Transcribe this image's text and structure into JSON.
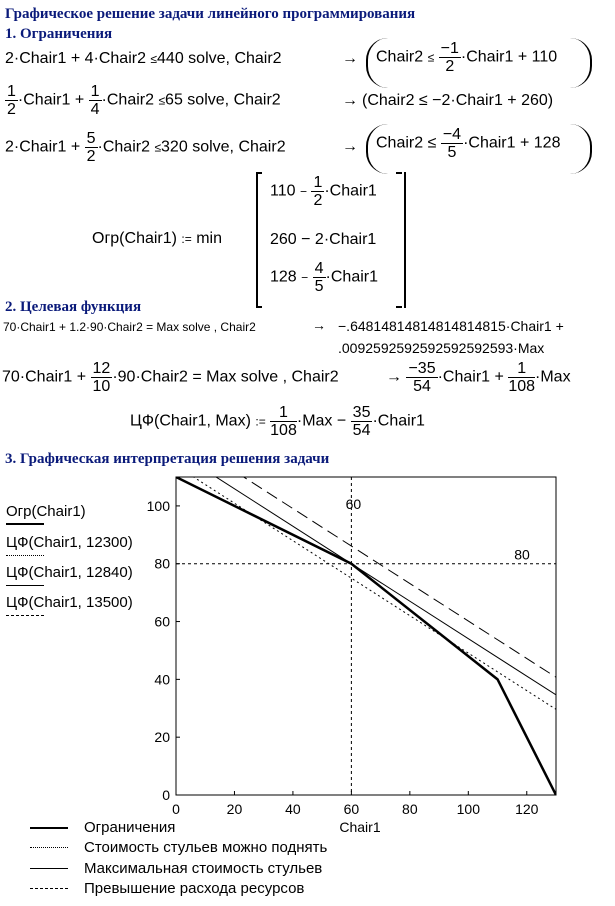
{
  "title": "Графическое решение задачи линейного программирования",
  "section1": "1. Ограничения",
  "section2": "2. Целевая функция",
  "section3": "3. Графическая интерпретация решения задачи",
  "eq1": {
    "lhs_a": "2·Chair1",
    "plus": "+",
    "lhs_b": "4·Chair2",
    "le": "≤",
    "rhs": "440",
    "solve": "solve",
    "var": "Chair2",
    "arrow": "→",
    "res_a": "Chair2",
    "res_num": "−1",
    "res_den": "2",
    "res_b": "·Chair1",
    "res_c": "+ 110"
  },
  "eq2": {
    "num1": "1",
    "den1": "2",
    "a": "·Chair1",
    "plus": "+",
    "num2": "1",
    "den2": "4",
    "b": "·Chair2",
    "le": "≤",
    "rhs": "65",
    "solve": "solve",
    "var": "Chair2",
    "arrow": "→",
    "result": "(Chair2 ≤ −2·Chair1 + 260)"
  },
  "eq3": {
    "lhs_a": "2·Chair1",
    "plus": "+",
    "num": "5",
    "den": "2",
    "b": "·Chair2",
    "le": "≤",
    "rhs": "320",
    "solve": "solve",
    "var": "Chair2",
    "arrow": "→",
    "res_a": "Chair2 ≤",
    "res_num": "−4",
    "res_den": "5",
    "res_b": "·Chair1",
    "res_c": "+ 128"
  },
  "ogr": {
    "name": "Огр(Chair1)",
    "assign": ":=",
    "min": "min",
    "r1a": "110",
    "r1op": "−",
    "r1n": "1",
    "r1d": "2",
    "r1b": "·Chair1",
    "r2": "260  −  2·Chair1",
    "r3a": "128",
    "r3op": "−",
    "r3n": "4",
    "r3d": "5",
    "r3b": "·Chair1"
  },
  "obj1": {
    "lhs": "70·Chair1  +  1.2·90·Chair2 = Max  solve , Chair2",
    "arrow": "→",
    "r1": "−.64814814814814814815·Chair1 +",
    "r2": ".0092592592592592592593·Max"
  },
  "obj2": {
    "a": "70·Chair1",
    "plus": "+",
    "num": "12",
    "den": "10",
    "b": "·90·Chair2 = Max solve , Chair2",
    "arrow": "→",
    "n1": "−35",
    "d1": "54",
    "c1": "·Chair1",
    "plus2": "+",
    "n2": "1",
    "d2": "108",
    "c2": "·Max"
  },
  "cf": {
    "name": "ЦФ(Chair1, Max)",
    "assign": ":=",
    "n1": "1",
    "d1": "108",
    "a": "·Max",
    "minus": "−",
    "n2": "35",
    "d2": "54",
    "b": "·Chair1"
  },
  "side_labels": [
    "Огр(Chair1)",
    "ЦФ(Chair1, 12300)",
    "ЦФ(Chair1, 12840)",
    "ЦФ(Chair1, 13500)"
  ],
  "legend": [
    "Ограничения",
    "Стоимость стульев можно поднять",
    "Максимальная стоимость стульев",
    "Превышение расхода ресурсов"
  ],
  "chart_data": {
    "type": "line",
    "xlabel": "Chair1",
    "ylabel": "",
    "xlim": [
      0,
      130
    ],
    "ylim": [
      0,
      110
    ],
    "x_ticks": [
      0,
      20,
      40,
      60,
      80,
      100,
      120
    ],
    "y_ticks": [
      0,
      20,
      40,
      60,
      80,
      100
    ],
    "markers": [
      {
        "axis": "x",
        "value": 60,
        "label": "60"
      },
      {
        "axis": "y",
        "value": 80,
        "label": "80"
      }
    ],
    "series": [
      {
        "name": "Ограничения",
        "style": "solid-thick",
        "points": [
          [
            0,
            110
          ],
          [
            60,
            80
          ],
          [
            110,
            40
          ],
          [
            130,
            0
          ]
        ]
      },
      {
        "name": "Стоимость стульев можно поднять",
        "style": "dotted",
        "points": [
          [
            0,
            113.89
          ],
          [
            130,
            29.63
          ]
        ]
      },
      {
        "name": "Максимальная стоимость стульев",
        "style": "solid-thin",
        "points": [
          [
            0,
            118.89
          ],
          [
            130,
            34.63
          ]
        ]
      },
      {
        "name": "Превышение расхода ресурсов",
        "style": "dashed",
        "points": [
          [
            0,
            125
          ],
          [
            130,
            40.74
          ]
        ]
      }
    ]
  }
}
